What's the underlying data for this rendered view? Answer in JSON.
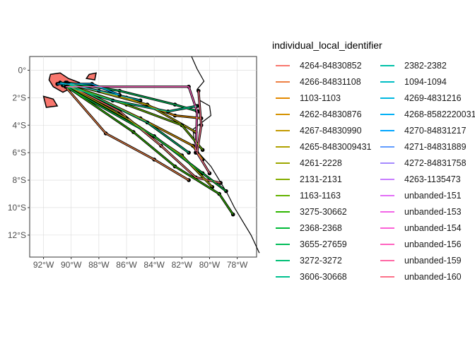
{
  "chart_data": {
    "type": "map",
    "xlabel": "",
    "ylabel": "",
    "xlim": [
      -93,
      -76.6
    ],
    "ylim": [
      -13.6,
      1.0
    ],
    "x_ticks": [
      -92,
      -90,
      -88,
      -86,
      -84,
      -82,
      -80,
      -78
    ],
    "x_tick_labels": [
      "92°W",
      "90°W",
      "88°W",
      "86°W",
      "84°W",
      "82°W",
      "80°W",
      "78°W"
    ],
    "y_ticks": [
      0,
      -2,
      -4,
      -6,
      -8,
      -10,
      -12
    ],
    "y_tick_labels": [
      "0°",
      "2°S",
      "4°S",
      "6°S",
      "8°S",
      "10°S",
      "12°S"
    ],
    "grid": true,
    "legend": {
      "title": "individual_local_identifier",
      "placement": "right",
      "entries": [
        {
          "name": "4264-84830852",
          "color": "#F8766D"
        },
        {
          "name": "4266-84831108",
          "color": "#EE8044"
        },
        {
          "name": "1103-1103",
          "color": "#E38900"
        },
        {
          "name": "4262-84830876",
          "color": "#D49200"
        },
        {
          "name": "4267-84830990",
          "color": "#C39A00"
        },
        {
          "name": "4265-8483009431",
          "color": "#B0A100"
        },
        {
          "name": "4261-2228",
          "color": "#9CA700"
        },
        {
          "name": "2131-2131",
          "color": "#84AD00"
        },
        {
          "name": "1163-1163",
          "color": "#64B200"
        },
        {
          "name": "3275-30662",
          "color": "#2FB600"
        },
        {
          "name": "2368-2368",
          "color": "#00BA38"
        },
        {
          "name": "3655-27659",
          "color": "#00BC59"
        },
        {
          "name": "3272-3272",
          "color": "#00BF75"
        },
        {
          "name": "3606-30668",
          "color": "#00C08E"
        },
        {
          "name": "2382-2382",
          "color": "#00C1A7"
        },
        {
          "name": "1094-1094",
          "color": "#00BDC4"
        },
        {
          "name": "4269-4831216",
          "color": "#00B8E0"
        },
        {
          "name": "4268-8582220031",
          "color": "#00AFF5"
        },
        {
          "name": "4270-84831217",
          "color": "#00A5FF"
        },
        {
          "name": "4271-84831889",
          "color": "#619CFF"
        },
        {
          "name": "4272-84831758",
          "color": "#A58AFF"
        },
        {
          "name": "4263-1135473",
          "color": "#C77CFF"
        },
        {
          "name": "unbanded-151",
          "color": "#E26EF7"
        },
        {
          "name": "unbanded-153",
          "color": "#F265E7"
        },
        {
          "name": "unbanded-154",
          "color": "#FB61D7"
        },
        {
          "name": "unbanded-156",
          "color": "#FF62BF"
        },
        {
          "name": "unbanded-159",
          "color": "#FF67A4"
        },
        {
          "name": "unbanded-160",
          "color": "#FC7189"
        }
      ]
    },
    "coastline": [
      [
        -81.3,
        1.0
      ],
      [
        -80.9,
        0.1
      ],
      [
        -80.4,
        -0.8
      ],
      [
        -80.9,
        -1.4
      ],
      [
        -80.7,
        -2.2
      ],
      [
        -80.0,
        -2.6
      ],
      [
        -79.9,
        -3.3
      ],
      [
        -80.3,
        -3.6
      ],
      [
        -81.2,
        -4.3
      ],
      [
        -81.1,
        -5.2
      ],
      [
        -80.8,
        -6.0
      ],
      [
        -79.9,
        -7.0
      ],
      [
        -79.3,
        -8.0
      ],
      [
        -78.7,
        -9.0
      ],
      [
        -78.2,
        -10.0
      ],
      [
        -77.6,
        -11.0
      ],
      [
        -77.0,
        -12.0
      ],
      [
        -76.4,
        -13.3
      ]
    ],
    "tracks": [
      {
        "id": 0,
        "pts": [
          [
            -90.4,
            -1.0
          ],
          [
            -86.5,
            -3.0
          ],
          [
            -83.5,
            -5.5
          ],
          [
            -81.0,
            -7.8
          ],
          [
            -79.2,
            -8.2
          ]
        ]
      },
      {
        "id": 1,
        "pts": [
          [
            -90.5,
            -1.1
          ],
          [
            -87.5,
            -4.6
          ],
          [
            -84.0,
            -6.5
          ],
          [
            -81.5,
            -8.0
          ]
        ]
      },
      {
        "id": 2,
        "pts": [
          [
            -90.3,
            -1.0
          ],
          [
            -86.0,
            -2.0
          ],
          [
            -82.5,
            -3.3
          ],
          [
            -80.6,
            -3.5
          ]
        ]
      },
      {
        "id": 3,
        "pts": [
          [
            -90.2,
            -1.0
          ],
          [
            -85.0,
            -3.5
          ],
          [
            -81.2,
            -5.5
          ],
          [
            -80.5,
            -6.5
          ]
        ]
      },
      {
        "id": 5,
        "pts": [
          [
            -90.4,
            -0.9
          ],
          [
            -84.5,
            -2.5
          ],
          [
            -81.0,
            -4.5
          ]
        ]
      },
      {
        "id": 6,
        "pts": [
          [
            -90.3,
            -1.1
          ],
          [
            -86.0,
            -3.5
          ],
          [
            -82.0,
            -6.2
          ],
          [
            -79.8,
            -8.5
          ]
        ]
      },
      {
        "id": 8,
        "pts": [
          [
            -90.5,
            -1.0
          ],
          [
            -86.0,
            -2.5
          ],
          [
            -82.0,
            -4.0
          ],
          [
            -80.5,
            -5.8
          ]
        ]
      },
      {
        "id": 9,
        "pts": [
          [
            -90.6,
            -1.0
          ],
          [
            -85.5,
            -4.5
          ],
          [
            -82.5,
            -7.0
          ],
          [
            -79.3,
            -9.0
          ],
          [
            -78.3,
            -10.5
          ]
        ]
      },
      {
        "id": 10,
        "pts": [
          [
            -90.4,
            -1.2
          ],
          [
            -84.0,
            -4.8
          ],
          [
            -80.5,
            -7.5
          ],
          [
            -78.8,
            -8.8
          ]
        ]
      },
      {
        "id": 11,
        "pts": [
          [
            -90.3,
            -0.9
          ],
          [
            -86.5,
            -1.5
          ],
          [
            -82.5,
            -2.5
          ],
          [
            -80.8,
            -3.0
          ]
        ]
      },
      {
        "id": 12,
        "pts": [
          [
            -90.2,
            -1.0
          ],
          [
            -84.5,
            -3.8
          ],
          [
            -81.5,
            -6.0
          ]
        ]
      },
      {
        "id": 13,
        "pts": [
          [
            -90.6,
            -1.1
          ],
          [
            -87.0,
            -2.2
          ],
          [
            -83.0,
            -3.0
          ],
          [
            -80.9,
            -2.6
          ]
        ]
      },
      {
        "id": 15,
        "pts": [
          [
            -90.8,
            -0.9
          ],
          [
            -88.0,
            -1.5
          ],
          [
            -85.0,
            -2.2
          ]
        ]
      },
      {
        "id": 17,
        "pts": [
          [
            -91.0,
            -1.0
          ],
          [
            -88.5,
            -1.0
          ],
          [
            -86.5,
            -1.8
          ]
        ]
      },
      {
        "id": 25,
        "pts": [
          [
            -90.4,
            -1.2
          ],
          [
            -81.5,
            -1.2
          ],
          [
            -80.9,
            -3.0
          ],
          [
            -81.0,
            -6.0
          ]
        ]
      },
      {
        "id": 27,
        "pts": [
          [
            -80.8,
            -1.5
          ],
          [
            -80.6,
            -4.0
          ],
          [
            -80.9,
            -6.0
          ],
          [
            -80.0,
            -7.5
          ]
        ]
      }
    ]
  }
}
